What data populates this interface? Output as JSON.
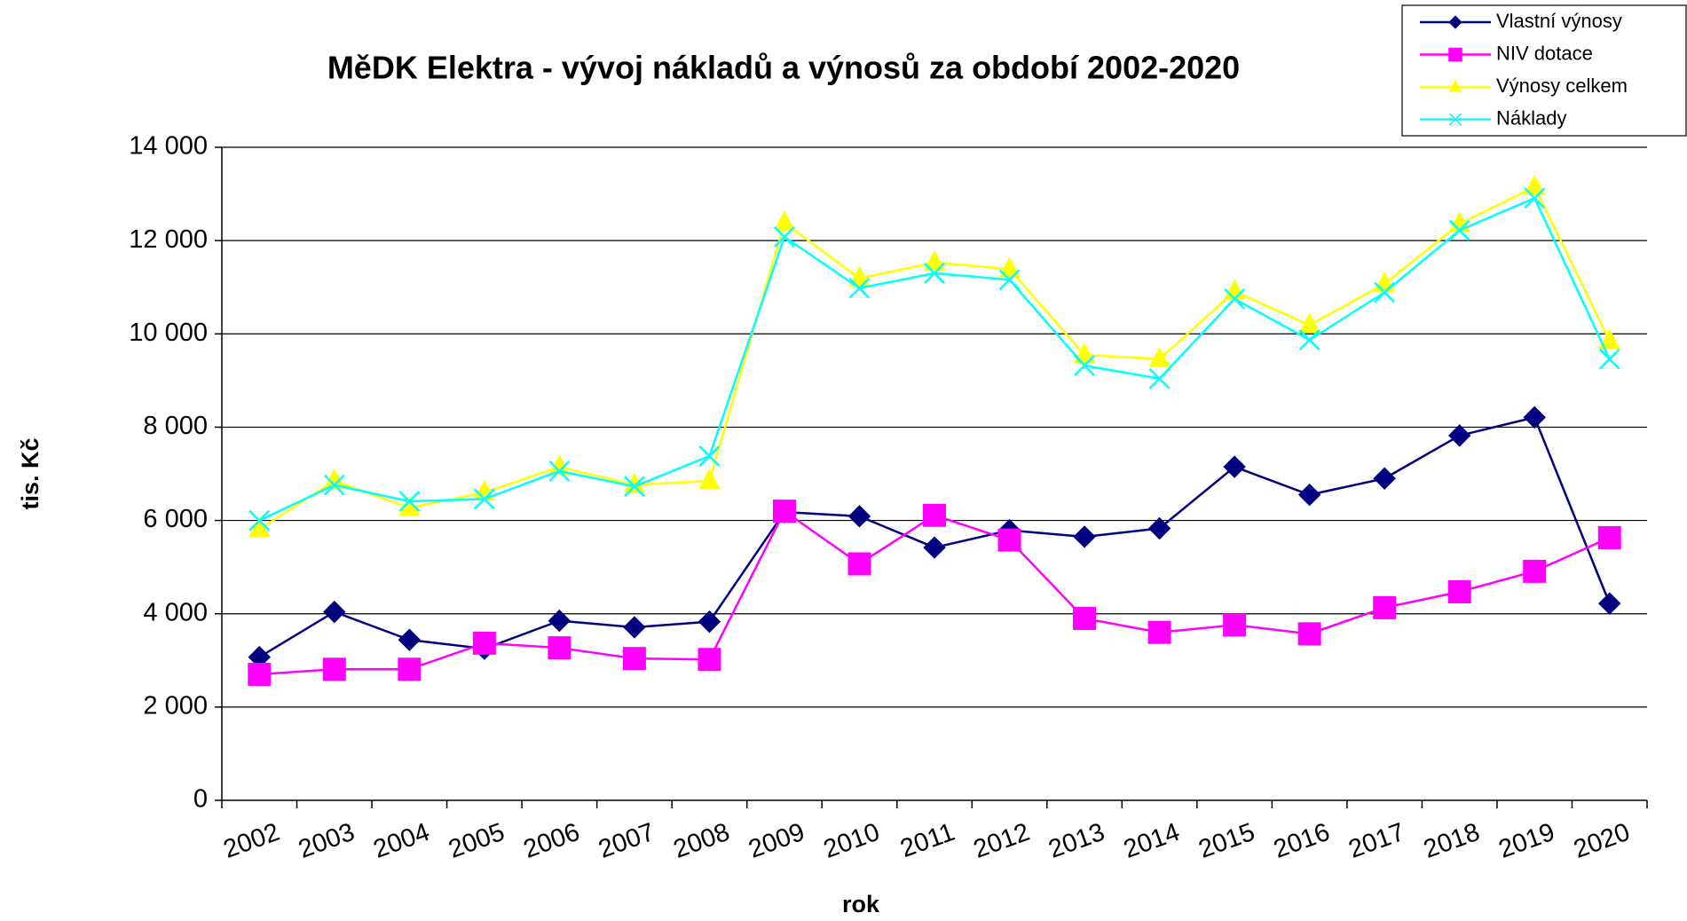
{
  "chart_data": {
    "type": "line",
    "title": "MěDK Elektra - vývoj nákladů a výnosů za období 2002-2020",
    "x_label": "rok",
    "y_label": "tis. Kč",
    "categories": [
      "2002",
      "2003",
      "2004",
      "2005",
      "2006",
      "2007",
      "2008",
      "2009",
      "2010",
      "2011",
      "2012",
      "2013",
      "2014",
      "2015",
      "2016",
      "2017",
      "2018",
      "2019",
      "2020"
    ],
    "series": [
      {
        "name": "Vlastní výnosy",
        "color": "#000080",
        "marker": "diamond",
        "values": [
          3070,
          4040,
          3440,
          3250,
          3850,
          3710,
          3830,
          6180,
          6090,
          5420,
          5790,
          5650,
          5830,
          7150,
          6550,
          6900,
          7820,
          8210,
          4220
        ]
      },
      {
        "name": "NIV dotace",
        "color": "#ff00ff",
        "marker": "square",
        "values": [
          2700,
          2810,
          2810,
          3370,
          3270,
          3040,
          3020,
          6200,
          5070,
          6110,
          5580,
          3900,
          3600,
          3760,
          3570,
          4130,
          4470,
          4910,
          5630
        ]
      },
      {
        "name": "Výnosy celkem",
        "color": "#ffff00",
        "marker": "triangle",
        "values": [
          5810,
          6850,
          6270,
          6600,
          7150,
          6760,
          6850,
          12380,
          11190,
          11530,
          11390,
          9550,
          9460,
          10910,
          10190,
          11070,
          12360,
          13150,
          9850
        ]
      },
      {
        "name": "Náklady",
        "color": "#00ffff",
        "marker": "x",
        "values": [
          6000,
          6760,
          6410,
          6460,
          7060,
          6730,
          7380,
          12080,
          10980,
          11300,
          11160,
          9320,
          9040,
          10750,
          9870,
          10890,
          12220,
          12910,
          9460
        ]
      }
    ],
    "ylim": [
      0,
      14000
    ],
    "yticks": [
      0,
      {
        "value": 2000,
        "label": "2 000"
      },
      {
        "value": 4000,
        "label": "4 000"
      },
      {
        "value": 6000,
        "label": "6 000"
      },
      {
        "value": 8000,
        "label": "8 000"
      },
      {
        "value": 10000,
        "label": "10 000"
      },
      {
        "value": 12000,
        "label": "12 000"
      },
      {
        "value": 14000,
        "label": "14 000"
      }
    ],
    "grid": true,
    "legend": "upper right"
  }
}
